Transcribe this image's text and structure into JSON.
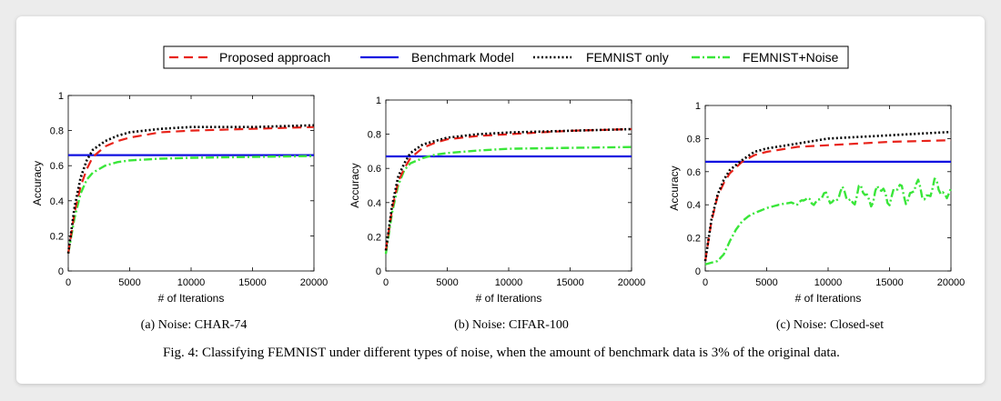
{
  "legend": {
    "entries": [
      {
        "label": "Proposed approach",
        "color": "#e8231a",
        "dash": "dashed"
      },
      {
        "label": "Benchmark Model",
        "color": "#1010e0",
        "dash": "solid"
      },
      {
        "label": "FEMNIST only",
        "color": "#000000",
        "dash": "dotted"
      },
      {
        "label": "FEMNIST+Noise",
        "color": "#39e639",
        "dash": "dashdot"
      }
    ]
  },
  "caption": "Fig. 4: Classifying FEMNIST under different types of noise, when the amount of benchmark data is 3% of the original data.",
  "chart_data": [
    {
      "type": "line",
      "subcaption": "(a) Noise: CHAR-74",
      "xlabel": "# of Iterations",
      "ylabel": "Accuracy",
      "xlim": [
        0,
        20000
      ],
      "ylim": [
        0,
        1
      ],
      "xticks": [
        "0",
        "5000",
        "10000",
        "15000",
        "20000"
      ],
      "yticks": [
        "0",
        "0.2",
        "0.4",
        "0.6",
        "0.8",
        "1"
      ],
      "series": [
        {
          "name": "Proposed approach",
          "x": [
            0,
            500,
            1000,
            1500,
            2000,
            3000,
            4000,
            5000,
            7500,
            10000,
            15000,
            20000
          ],
          "y": [
            0.1,
            0.33,
            0.48,
            0.58,
            0.65,
            0.71,
            0.74,
            0.76,
            0.79,
            0.8,
            0.81,
            0.82
          ]
        },
        {
          "name": "Benchmark Model",
          "x": [
            0,
            20000
          ],
          "y": [
            0.66,
            0.66
          ]
        },
        {
          "name": "FEMNIST only",
          "x": [
            0,
            500,
            1000,
            1500,
            2000,
            3000,
            4000,
            5000,
            7500,
            10000,
            15000,
            20000
          ],
          "y": [
            0.1,
            0.36,
            0.53,
            0.63,
            0.69,
            0.74,
            0.77,
            0.79,
            0.81,
            0.82,
            0.82,
            0.83
          ]
        },
        {
          "name": "FEMNIST+Noise",
          "x": [
            0,
            500,
            1000,
            1500,
            2000,
            3000,
            4000,
            5000,
            7500,
            10000,
            15000,
            20000
          ],
          "y": [
            0.1,
            0.3,
            0.44,
            0.52,
            0.56,
            0.6,
            0.62,
            0.63,
            0.64,
            0.645,
            0.65,
            0.655
          ]
        }
      ]
    },
    {
      "type": "line",
      "subcaption": "(b) Noise: CIFAR-100",
      "xlabel": "# of Iterations",
      "ylabel": "Accuracy",
      "xlim": [
        0,
        20000
      ],
      "ylim": [
        0,
        1
      ],
      "xticks": [
        "0",
        "5000",
        "10000",
        "15000",
        "20000"
      ],
      "yticks": [
        "0",
        "0.2",
        "0.4",
        "0.6",
        "0.8",
        "1"
      ],
      "series": [
        {
          "name": "Proposed approach",
          "x": [
            0,
            500,
            1000,
            1500,
            2000,
            3000,
            4000,
            5000,
            7500,
            10000,
            15000,
            20000
          ],
          "y": [
            0.12,
            0.36,
            0.52,
            0.6,
            0.66,
            0.72,
            0.75,
            0.77,
            0.79,
            0.8,
            0.82,
            0.83
          ]
        },
        {
          "name": "Benchmark Model",
          "x": [
            0,
            20000
          ],
          "y": [
            0.67,
            0.67
          ]
        },
        {
          "name": "FEMNIST only",
          "x": [
            0,
            500,
            1000,
            1500,
            2000,
            3000,
            4000,
            5000,
            7500,
            10000,
            15000,
            20000
          ],
          "y": [
            0.12,
            0.38,
            0.55,
            0.63,
            0.69,
            0.74,
            0.76,
            0.78,
            0.8,
            0.81,
            0.82,
            0.83
          ]
        },
        {
          "name": "FEMNIST+Noise",
          "x": [
            0,
            500,
            1000,
            1500,
            2000,
            3000,
            4000,
            5000,
            7500,
            10000,
            15000,
            20000
          ],
          "y": [
            0.1,
            0.34,
            0.5,
            0.59,
            0.63,
            0.66,
            0.68,
            0.69,
            0.705,
            0.715,
            0.72,
            0.725
          ]
        }
      ]
    },
    {
      "type": "line",
      "subcaption": "(c) Noise: Closed-set",
      "xlabel": "# of Iterations",
      "ylabel": "Accuracy",
      "xlim": [
        0,
        20000
      ],
      "ylim": [
        0,
        1
      ],
      "xticks": [
        "0",
        "5000",
        "10000",
        "15000",
        "20000"
      ],
      "yticks": [
        "0",
        "0.2",
        "0.4",
        "0.6",
        "0.8",
        "1"
      ],
      "series": [
        {
          "name": "Proposed approach",
          "x": [
            0,
            500,
            1000,
            1500,
            2000,
            3000,
            4000,
            5000,
            7500,
            10000,
            15000,
            20000
          ],
          "y": [
            0.06,
            0.3,
            0.45,
            0.53,
            0.59,
            0.66,
            0.7,
            0.72,
            0.75,
            0.76,
            0.78,
            0.79
          ]
        },
        {
          "name": "Benchmark Model",
          "x": [
            0,
            20000
          ],
          "y": [
            0.66,
            0.66
          ]
        },
        {
          "name": "FEMNIST only",
          "x": [
            0,
            500,
            1000,
            1500,
            2000,
            3000,
            4000,
            5000,
            7500,
            10000,
            15000,
            20000
          ],
          "y": [
            0.06,
            0.31,
            0.46,
            0.55,
            0.61,
            0.67,
            0.72,
            0.74,
            0.77,
            0.8,
            0.82,
            0.84
          ]
        },
        {
          "name": "FEMNIST+Noise",
          "x": [
            0,
            1000,
            1500,
            2000,
            2500,
            3000,
            3500,
            4000,
            5000,
            6000,
            7000,
            8000,
            9000,
            10000,
            11000,
            12000,
            13000,
            14000,
            15000,
            16000,
            17000,
            18000,
            19000,
            20000
          ],
          "y": [
            0.04,
            0.06,
            0.1,
            0.18,
            0.25,
            0.3,
            0.33,
            0.35,
            0.38,
            0.4,
            0.41,
            0.42,
            0.43,
            0.44,
            0.45,
            0.45,
            0.46,
            0.46,
            0.47,
            0.47,
            0.48,
            0.48,
            0.49,
            0.5
          ]
        }
      ]
    }
  ]
}
